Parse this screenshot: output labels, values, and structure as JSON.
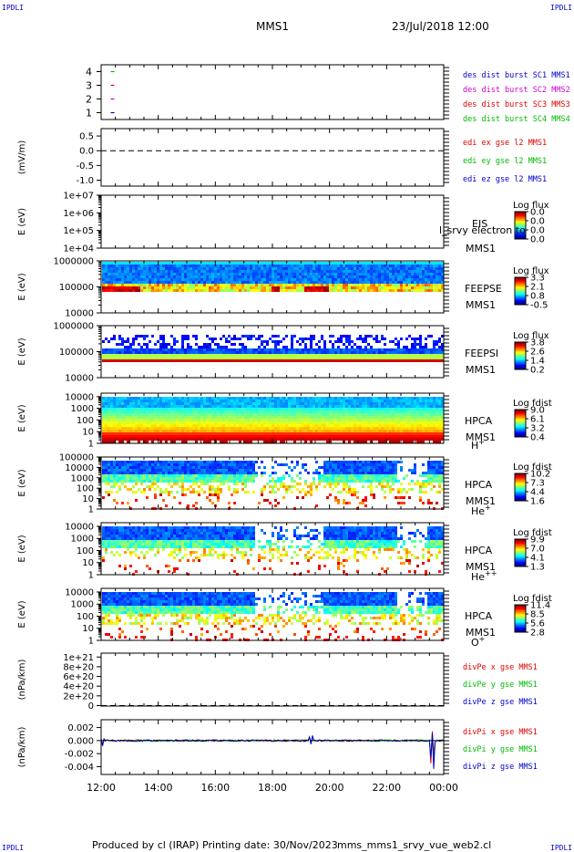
{
  "header": {
    "corner_left": "IPDLI",
    "corner_right": "IPDLI",
    "spacecraft": "MMS1",
    "datetime": "23/Jul/2018 12:00"
  },
  "footer": {
    "produced_by": "Produced by cl (IRAP)",
    "printing_date": "Printing date: 30/Nov/2023",
    "filename": "mms_mms1_srvy_vue_web2.cl",
    "corner_left": "IPDLI",
    "corner_right": "IPDLI"
  },
  "x_axis": {
    "ticks": [
      "12:00",
      "14:00",
      "16:00",
      "18:00",
      "20:00",
      "22:00",
      "00:00"
    ],
    "start_hour": 12,
    "end_hour": 24
  },
  "colors": {
    "red": "#e00000",
    "magenta": "#cc00cc",
    "green": "#00bb00",
    "blue": "#0000cc"
  },
  "chart_data": [
    {
      "type": "scatter",
      "panel": "burst",
      "yticks": [
        "1",
        "2",
        "3",
        "4"
      ],
      "ylim": [
        0.5,
        4.5
      ],
      "legend": [
        {
          "label": "des dist burst SC1 MMS1",
          "color": "#0000cc"
        },
        {
          "label": "des dist burst SC2 MMS2",
          "color": "#cc00cc"
        },
        {
          "label": "des dist burst SC3 MMS3",
          "color": "#e00000"
        },
        {
          "label": "des dist burst SC4 MMS4",
          "color": "#00bb00"
        }
      ],
      "marks": [
        {
          "x": 12.4,
          "y": 4,
          "color": "#00bb00"
        },
        {
          "x": 12.4,
          "y": 3,
          "color": "#e00000"
        },
        {
          "x": 12.4,
          "y": 2,
          "color": "#cc00cc"
        },
        {
          "x": 12.4,
          "y": 1,
          "color": "#0000cc"
        }
      ]
    },
    {
      "type": "line",
      "panel": "edi",
      "ylabel": "(mV/m)",
      "yticks": [
        "-1.0",
        "-0.5",
        "0.0",
        "0.5"
      ],
      "ytick_values": [
        -1.0,
        -0.5,
        0.0,
        0.5
      ],
      "ylim": [
        -1.2,
        0.75
      ],
      "reference_line": 0.0,
      "legend": [
        {
          "label": "edi ex gse l2 MMS1",
          "color": "#e00000"
        },
        {
          "label": "edi ey gse l2 MMS1",
          "color": "#00bb00"
        },
        {
          "label": "edi ez gse l2 MMS1",
          "color": "#0000cc"
        }
      ]
    },
    {
      "type": "heatmap",
      "panel": "eis",
      "ylabel": "E (eV)",
      "yticks": [
        "1e+04",
        "1e+05",
        "1e+06",
        "1e+07"
      ],
      "ylim_log": [
        4,
        7
      ],
      "label": "EIS",
      "sublabel": "MMS1",
      "overlay_text": "l_srvy electron to",
      "colorbar_title": "Log flux",
      "colorbar_ticks": [
        "0.0",
        "0.0",
        "0.0",
        "0.0"
      ]
    },
    {
      "type": "heatmap",
      "panel": "feepse",
      "ylabel": "E (eV)",
      "yticks": [
        "10000",
        "100000",
        "1000000"
      ],
      "ylim_log": [
        4,
        6
      ],
      "label": "FEEPSE",
      "sublabel": "MMS1",
      "colorbar_title": "Log flux",
      "colorbar_ticks": [
        "3.3",
        "2.1",
        "0.8",
        "-0.5"
      ]
    },
    {
      "type": "heatmap",
      "panel": "feepsi",
      "ylabel": "E (eV)",
      "yticks": [
        "10000",
        "100000",
        "1000000"
      ],
      "ylim_log": [
        4,
        6
      ],
      "label": "FEEPSI",
      "sublabel": "MMS1",
      "colorbar_title": "Log flux",
      "colorbar_ticks": [
        "3.8",
        "2.6",
        "1.4",
        "0.2"
      ]
    },
    {
      "type": "heatmap",
      "panel": "hpca_h",
      "ylabel": "E (eV)",
      "yticks": [
        "1",
        "10",
        "100",
        "1000",
        "10000"
      ],
      "ylim_log": [
        0,
        4.3
      ],
      "label": "HPCA",
      "sublabel": "MMS1",
      "species": "H",
      "species_sup": "+",
      "colorbar_title": "Log fdist",
      "colorbar_ticks": [
        "9.0",
        "6.1",
        "3.2",
        "0.4"
      ]
    },
    {
      "type": "heatmap",
      "panel": "hpca_he",
      "ylabel": "E (eV)",
      "yticks": [
        "1",
        "10",
        "100",
        "1000",
        "10000",
        "100000"
      ],
      "ylim_log": [
        0,
        5
      ],
      "label": "HPCA",
      "sublabel": "MMS1",
      "species": "He",
      "species_sup": "+",
      "colorbar_title": "Log fdist",
      "colorbar_ticks": [
        "10.2",
        "7.3",
        "4.4",
        "1.6"
      ]
    },
    {
      "type": "heatmap",
      "panel": "hpca_hepp",
      "ylabel": "E (eV)",
      "yticks": [
        "1",
        "10",
        "100",
        "1000",
        "10000"
      ],
      "ylim_log": [
        0,
        4.3
      ],
      "label": "HPCA",
      "sublabel": "MMS1",
      "species": "He",
      "species_sup": "++",
      "colorbar_title": "Log fdist",
      "colorbar_ticks": [
        "9.9",
        "7.0",
        "4.1",
        "1.3"
      ]
    },
    {
      "type": "heatmap",
      "panel": "hpca_o",
      "ylabel": "E (eV)",
      "yticks": [
        "1",
        "10",
        "100",
        "1000",
        "10000"
      ],
      "ylim_log": [
        0,
        4.3
      ],
      "label": "HPCA",
      "sublabel": "MMS1",
      "species": "O",
      "species_sup": "+",
      "colorbar_title": "Log fdist",
      "colorbar_ticks": [
        "11.4",
        "8.5",
        "5.6",
        "2.8"
      ]
    },
    {
      "type": "line",
      "panel": "divpe",
      "ylabel": "(nPa/km)",
      "yticks": [
        "0",
        "2e+20",
        "4e+20",
        "6e+20",
        "8e+20",
        "1e+21"
      ],
      "ytick_values": [
        0,
        2e+20,
        4e+20,
        6e+20,
        8e+20,
        1e+21
      ],
      "ylim": [
        -1e+19,
        1.08e+21
      ],
      "reference_line": 0,
      "legend": [
        {
          "label": "divPe x gse MMS1",
          "color": "#e00000"
        },
        {
          "label": "divPe y gse MMS1",
          "color": "#00bb00"
        },
        {
          "label": "divPe z gse MMS1",
          "color": "#0000cc"
        }
      ]
    },
    {
      "type": "line",
      "panel": "divpi",
      "ylabel": "(nPa/km)",
      "yticks": [
        "-0.004",
        "-0.002",
        "0.000",
        "0.002"
      ],
      "ytick_values": [
        -0.004,
        -0.002,
        0.0,
        0.002
      ],
      "ylim": [
        -0.0052,
        0.0032
      ],
      "reference_line": 0.0,
      "legend": [
        {
          "label": "divPi x gse MMS1",
          "color": "#e00000"
        },
        {
          "label": "divPi y gse MMS1",
          "color": "#00bb00"
        },
        {
          "label": "divPi z gse MMS1",
          "color": "#0000cc"
        }
      ],
      "spikes": [
        {
          "x": 12.05,
          "ymin": -0.0012,
          "ymax": 0.0004
        },
        {
          "x": 19.35,
          "ymin": -0.0008,
          "ymax": 0.0009
        },
        {
          "x": 23.6,
          "ymin": -0.0045,
          "ymax": 0.0018
        }
      ]
    }
  ]
}
